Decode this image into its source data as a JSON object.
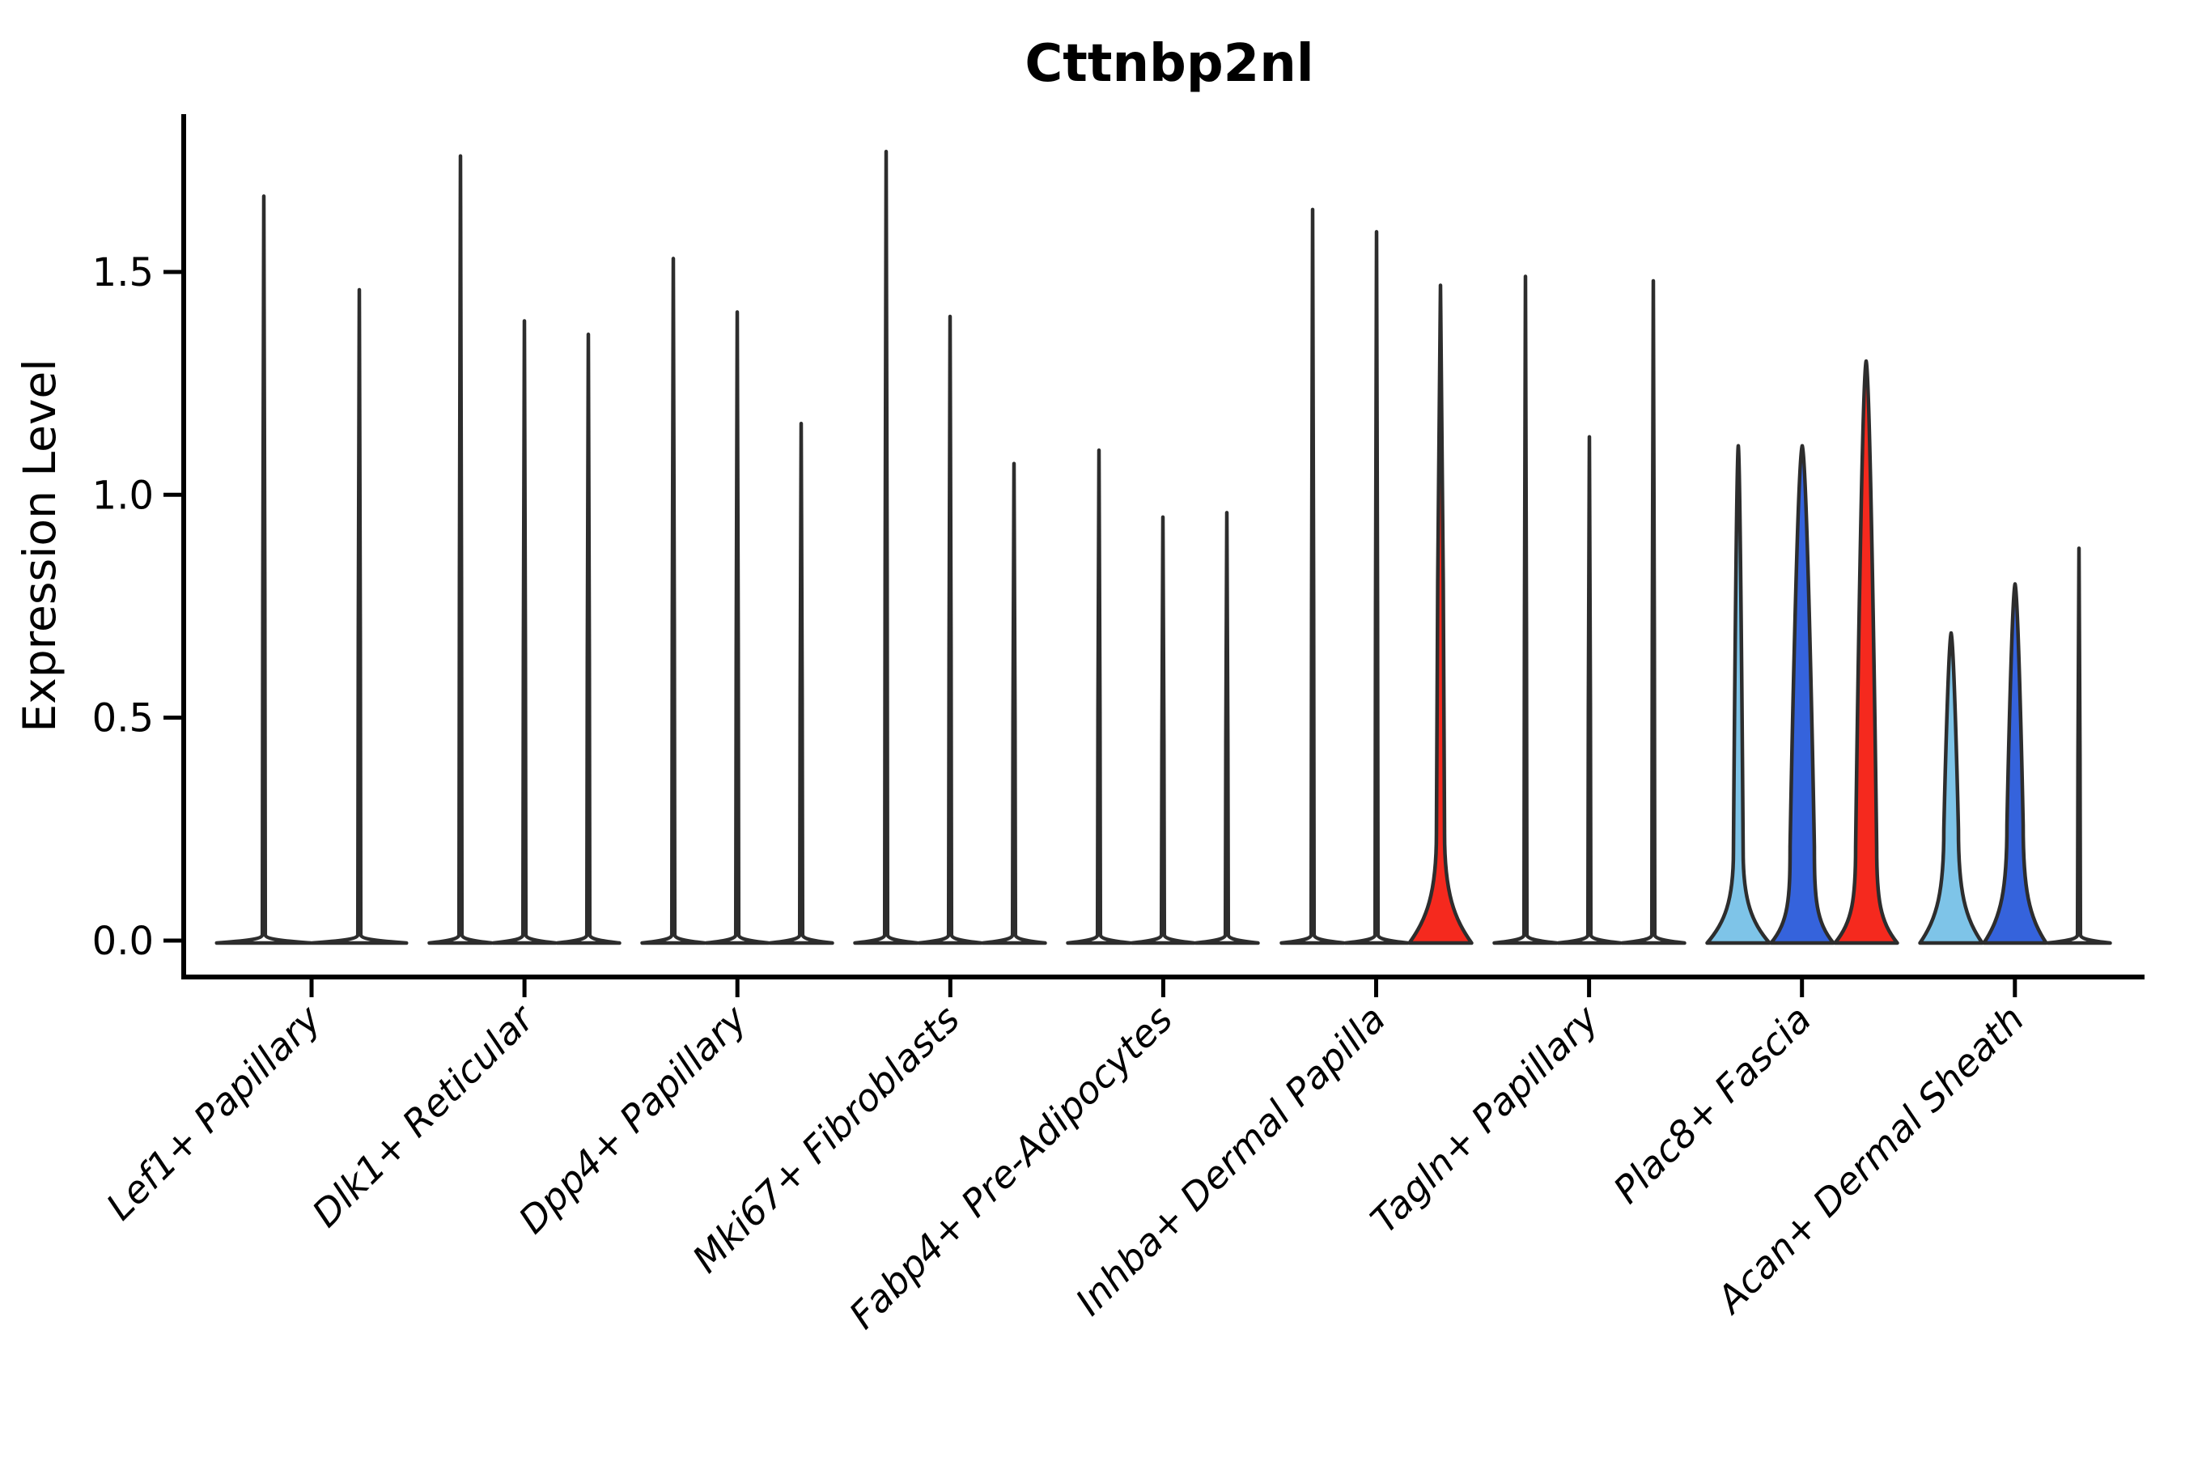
{
  "figure": {
    "background": "#ffffff"
  },
  "chart_data": {
    "type": "violin",
    "title": "Cttnbp2nl",
    "ylabel": "Expression Level",
    "xlabel": "",
    "ylim": [
      -0.08,
      1.85
    ],
    "yticks": [
      0.0,
      0.5,
      1.0,
      1.5
    ],
    "ytick_labels": [
      "0.0",
      "0.5",
      "1.0",
      "1.5"
    ],
    "grid": false,
    "legend": "none",
    "palette": {
      "red": "#F5291E",
      "light_blue": "#7EC4E8",
      "dark_blue": "#3563DC",
      "outline": "#2D2D2D",
      "spike_fill": "#FFFFFF",
      "axis": "#000000"
    },
    "categories": [
      {
        "label": "Lef1+ Papillary",
        "violins": [
          {
            "kind": "spike",
            "max": 1.67,
            "color": "spike_fill"
          },
          {
            "kind": "spike",
            "max": 1.46,
            "color": "spike_fill"
          }
        ]
      },
      {
        "label": "Dlk1+ Reticular",
        "violins": [
          {
            "kind": "spike",
            "max": 1.76,
            "color": "spike_fill"
          },
          {
            "kind": "spike",
            "max": 1.39,
            "color": "spike_fill"
          },
          {
            "kind": "spike",
            "max": 1.36,
            "color": "spike_fill"
          }
        ]
      },
      {
        "label": "Dpp4+ Papillary",
        "violins": [
          {
            "kind": "spike",
            "max": 1.53,
            "color": "spike_fill"
          },
          {
            "kind": "spike",
            "max": 1.41,
            "color": "spike_fill"
          },
          {
            "kind": "spike",
            "max": 1.16,
            "color": "spike_fill"
          }
        ]
      },
      {
        "label": "Mki67+ Fibroblasts",
        "violins": [
          {
            "kind": "spike",
            "max": 1.77,
            "color": "spike_fill"
          },
          {
            "kind": "spike",
            "max": 1.4,
            "color": "spike_fill"
          },
          {
            "kind": "spike",
            "max": 1.07,
            "color": "spike_fill"
          }
        ]
      },
      {
        "label": "Fabp4+ Pre-Adipocytes",
        "violins": [
          {
            "kind": "spike",
            "max": 1.1,
            "color": "spike_fill"
          },
          {
            "kind": "spike",
            "max": 0.95,
            "color": "spike_fill"
          },
          {
            "kind": "spike",
            "max": 0.96,
            "color": "spike_fill"
          }
        ]
      },
      {
        "label": "Inhba+ Dermal Papilla",
        "violins": [
          {
            "kind": "spike",
            "max": 1.64,
            "color": "spike_fill"
          },
          {
            "kind": "spike",
            "max": 1.59,
            "color": "spike_fill"
          },
          {
            "kind": "violin",
            "max": 1.47,
            "color": "red",
            "neck": 5,
            "flare": 0.24
          }
        ]
      },
      {
        "label": "Tagln+ Papillary",
        "violins": [
          {
            "kind": "spike",
            "max": 1.49,
            "color": "spike_fill"
          },
          {
            "kind": "spike",
            "max": 1.13,
            "color": "spike_fill"
          },
          {
            "kind": "spike",
            "max": 1.48,
            "color": "spike_fill"
          }
        ]
      },
      {
        "label": "Plac8+ Fascia",
        "violins": [
          {
            "kind": "violin",
            "max": 1.11,
            "color": "light_blue",
            "neck": 6,
            "flare": 0.2
          },
          {
            "kind": "violin",
            "max": 1.11,
            "color": "dark_blue",
            "neck": 15,
            "flare": 0.21
          },
          {
            "kind": "violin",
            "max": 1.3,
            "color": "red",
            "neck": 13,
            "flare": 0.21
          }
        ]
      },
      {
        "label": "Acan+ Dermal Sheath",
        "violins": [
          {
            "kind": "violin",
            "max": 0.69,
            "color": "light_blue",
            "neck": 9,
            "flare": 0.25
          },
          {
            "kind": "violin",
            "max": 0.8,
            "color": "dark_blue",
            "neck": 10,
            "flare": 0.26
          },
          {
            "kind": "spike",
            "max": 0.88,
            "color": "spike_fill"
          }
        ]
      }
    ]
  }
}
